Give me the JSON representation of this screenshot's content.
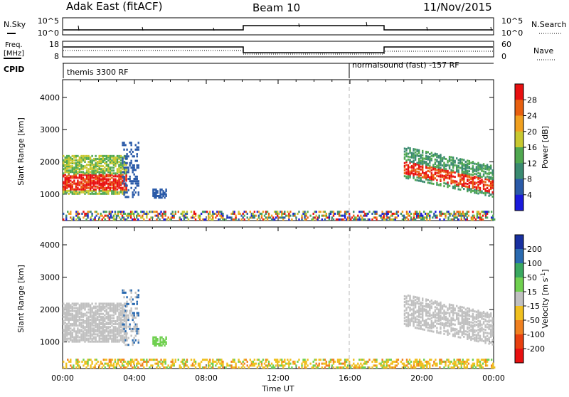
{
  "header": {
    "station": "Adak East (fitACF)",
    "beam": "Beam 10",
    "date": "11/Nov/2015"
  },
  "sky_panel": {
    "left_label": "N.Sky",
    "right_label": "N.Search",
    "left_ticks": [
      "10^5",
      "10^0"
    ],
    "right_ticks": [
      "10^5",
      "10^0"
    ]
  },
  "freq_panel": {
    "left_label": "Freq.",
    "left_unit": "[MHz]",
    "right_label": "Nave",
    "left_ticks": [
      "18",
      "8"
    ],
    "right_ticks": [
      "60",
      "0"
    ]
  },
  "cpid_panel": {
    "label": "CPID",
    "programs": [
      {
        "name": "themis 3300 RF",
        "start": 0
      },
      {
        "name": "normalsound (fast) -157 RF",
        "start": 16
      }
    ]
  },
  "chart_data": [
    {
      "type": "heatmap",
      "name": "power",
      "ylabel": "Slant Range [km]",
      "ylim": [
        180,
        4550
      ],
      "yticks": [
        "1000",
        "2000",
        "3000",
        "4000"
      ],
      "xlim": [
        0,
        24
      ],
      "colorbar": {
        "label": "Power [dB]",
        "ticks": [
          "4",
          "8",
          "12",
          "16",
          "20",
          "24",
          "28"
        ],
        "colors": [
          "#1a1adc",
          "#2a5aa8",
          "#3a8a70",
          "#50a850",
          "#c8c830",
          "#f0a020",
          "#e86010",
          "#e81010"
        ]
      }
    },
    {
      "type": "heatmap",
      "name": "velocity",
      "ylabel": "Slant Range [km]",
      "ylim": [
        180,
        4550
      ],
      "yticks": [
        "1000",
        "2000",
        "3000",
        "4000"
      ],
      "xlim": [
        0,
        24
      ],
      "colorbar": {
        "label": "Velocity [m s",
        "label_sup": "-1",
        "label_end": "]",
        "ticks": [
          "200",
          "100",
          "50",
          "15",
          "-15",
          "-50",
          "-100",
          "-200"
        ],
        "colors": [
          "#1830a0",
          "#2a6ab0",
          "#3aa860",
          "#70d050",
          "#c0c0c0",
          "#f0c020",
          "#f08020",
          "#e84010",
          "#e81010"
        ]
      }
    }
  ],
  "x_axis": {
    "ticks": [
      "00:00",
      "04:00",
      "08:00",
      "12:00",
      "16:00",
      "20:00",
      "00:00"
    ],
    "label": "Time UT"
  }
}
